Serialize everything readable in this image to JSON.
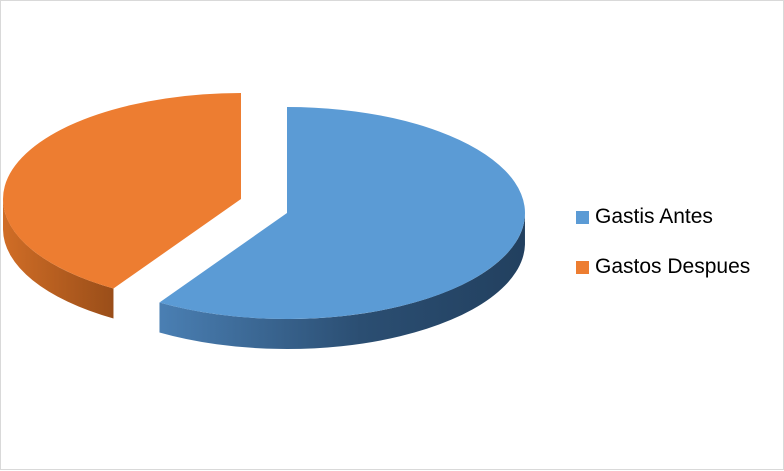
{
  "chart_data": {
    "type": "pie",
    "style": "3d-exploded",
    "title": "",
    "categories": [
      "Gastis Antes",
      "Gastos Despues"
    ],
    "values": [
      59,
      41
    ],
    "colors": {
      "Gastis Antes": "#5b9bd5",
      "Gastos Despues": "#ed7d31"
    },
    "side_colors": {
      "Gastis Antes": "#2e5478",
      "Gastos Despues": "#a4541c"
    },
    "legend_position": "right"
  }
}
